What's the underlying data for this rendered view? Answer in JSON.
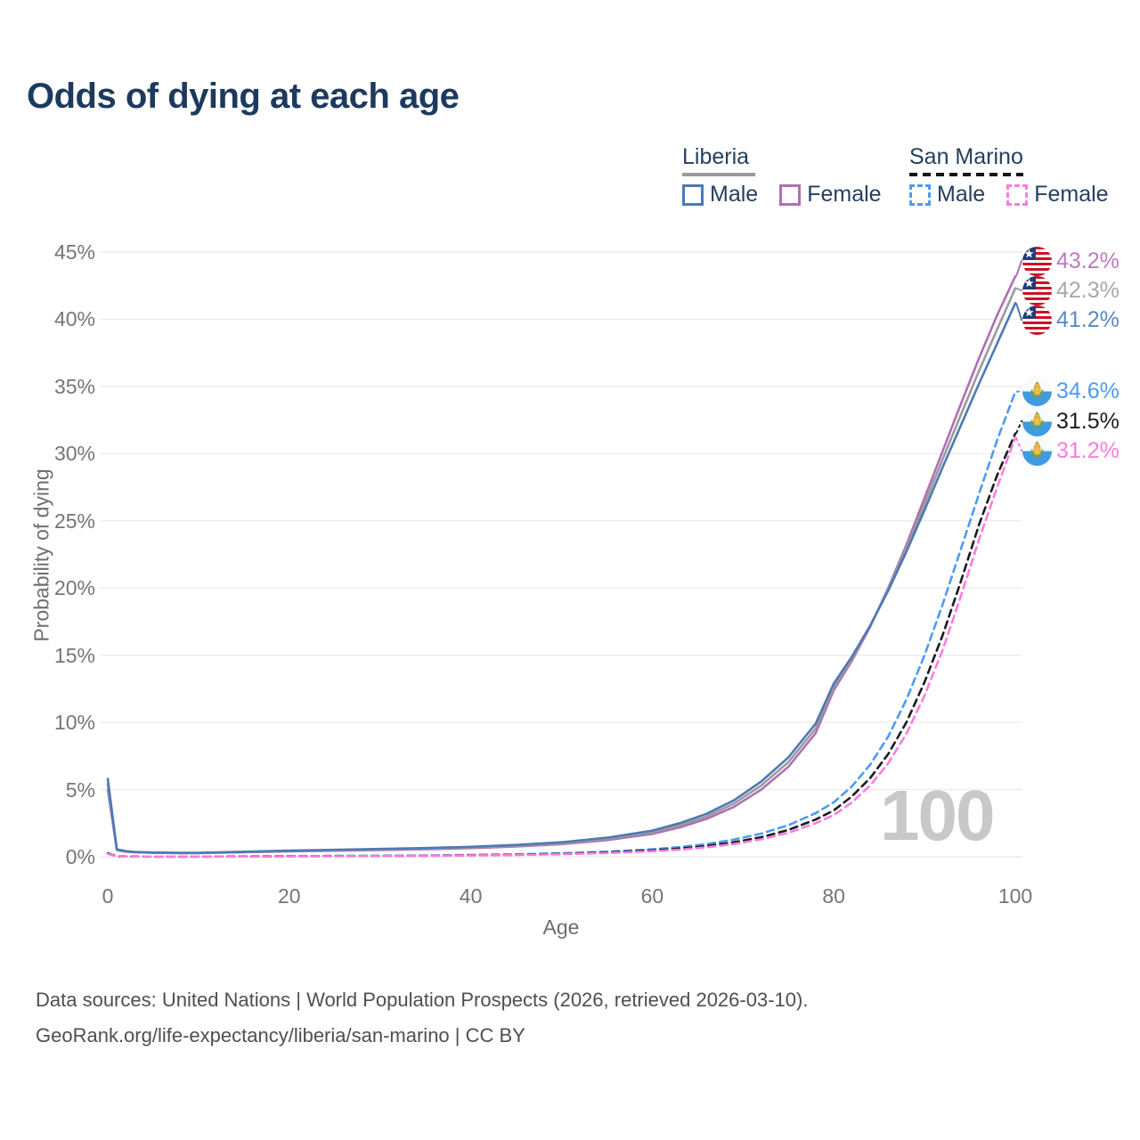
{
  "title": "Odds of dying at each age",
  "watermark_age": "100",
  "legend": {
    "groups": [
      {
        "name": "Liberia",
        "line_style": "solid",
        "underline_color": "#9a9a9a",
        "items": [
          {
            "label": "Male",
            "color": "#4C79B5"
          },
          {
            "label": "Female",
            "color": "#B06FB3"
          }
        ]
      },
      {
        "name": "San Marino",
        "line_style": "dashed",
        "underline_color": "#151515",
        "items": [
          {
            "label": "Male",
            "color": "#4D9BF5"
          },
          {
            "label": "Female",
            "color": "#FF7BDE"
          }
        ]
      }
    ]
  },
  "chart_data": {
    "type": "line",
    "title": "Odds of dying at each age",
    "xlabel": "Age",
    "ylabel": "Probability of dying",
    "xlim": [
      0,
      100
    ],
    "ylim": [
      0,
      45
    ],
    "x_ticks": [
      0,
      20,
      40,
      60,
      80,
      100
    ],
    "y_ticks": [
      0,
      5,
      10,
      15,
      20,
      25,
      30,
      35,
      40,
      45
    ],
    "y_tick_suffix": "%",
    "grid": "horizontal",
    "legend_position": "top-right",
    "x": [
      0,
      1,
      2,
      3,
      5,
      8,
      10,
      15,
      20,
      25,
      30,
      35,
      40,
      45,
      50,
      55,
      60,
      63,
      66,
      69,
      72,
      75,
      78,
      80,
      82,
      84,
      86,
      88,
      90,
      92,
      94,
      96,
      98,
      100
    ],
    "series": [
      {
        "name": "Liberia Female",
        "country": "Liberia",
        "sex": "female",
        "color": "#B06FB3",
        "dash": false,
        "flag": "liberia",
        "end_label": "43.2%",
        "label_color": "#bc7bbe",
        "label_row": 0,
        "values": [
          5.0,
          0.5,
          0.38,
          0.33,
          0.29,
          0.27,
          0.27,
          0.33,
          0.4,
          0.45,
          0.5,
          0.56,
          0.64,
          0.76,
          0.94,
          1.24,
          1.7,
          2.18,
          2.82,
          3.72,
          5.0,
          6.7,
          9.2,
          12.4,
          14.6,
          17.1,
          20.0,
          23.2,
          26.7,
          30.2,
          33.7,
          37.1,
          40.3,
          43.2
        ]
      },
      {
        "name": "Liberia",
        "country": "Liberia",
        "sex": "both",
        "color": "#9b9b9b",
        "dash": false,
        "flag": "liberia",
        "end_label": "42.3%",
        "label_color": "#a8a8a8",
        "label_row": 1,
        "values": [
          5.4,
          0.52,
          0.4,
          0.34,
          0.3,
          0.28,
          0.28,
          0.35,
          0.43,
          0.48,
          0.54,
          0.6,
          0.69,
          0.82,
          1.01,
          1.33,
          1.82,
          2.34,
          3.0,
          3.96,
          5.3,
          7.05,
          9.55,
          12.65,
          14.75,
          17.15,
          19.9,
          22.95,
          26.25,
          29.6,
          32.9,
          36.15,
          39.25,
          42.3
        ]
      },
      {
        "name": "Liberia Male",
        "country": "Liberia",
        "sex": "male",
        "color": "#4C79B5",
        "dash": false,
        "flag": "liberia",
        "end_label": "41.2%",
        "label_color": "#5b88c4",
        "label_row": 2,
        "values": [
          5.8,
          0.55,
          0.42,
          0.36,
          0.32,
          0.3,
          0.3,
          0.38,
          0.46,
          0.52,
          0.58,
          0.65,
          0.74,
          0.88,
          1.08,
          1.42,
          1.95,
          2.5,
          3.2,
          4.2,
          5.6,
          7.4,
          9.9,
          12.9,
          14.9,
          17.2,
          19.8,
          22.7,
          25.8,
          29.0,
          32.1,
          35.2,
          38.2,
          41.2
        ]
      },
      {
        "name": "San Marino Male",
        "country": "San Marino",
        "sex": "male",
        "color": "#4D9BF5",
        "dash": true,
        "flag": "san-marino",
        "end_label": "34.6%",
        "label_color": "#4D9BF5",
        "label_row": 3,
        "values": [
          0.28,
          0.03,
          0.02,
          0.02,
          0.01,
          0.01,
          0.01,
          0.03,
          0.05,
          0.06,
          0.07,
          0.09,
          0.13,
          0.18,
          0.26,
          0.38,
          0.56,
          0.72,
          0.95,
          1.28,
          1.72,
          2.35,
          3.25,
          4.05,
          5.25,
          6.85,
          8.95,
          11.7,
          15.0,
          18.8,
          22.9,
          27.0,
          31.0,
          34.6
        ]
      },
      {
        "name": "San Marino",
        "country": "San Marino",
        "sex": "both",
        "color": "#1c1c1c",
        "dash": true,
        "flag": "san-marino",
        "end_label": "31.5%",
        "label_color": "#1c1c1c",
        "label_row": 4,
        "values": [
          0.25,
          0.03,
          0.02,
          0.02,
          0.01,
          0.01,
          0.01,
          0.02,
          0.04,
          0.05,
          0.06,
          0.08,
          0.11,
          0.15,
          0.22,
          0.32,
          0.47,
          0.61,
          0.8,
          1.08,
          1.46,
          2.0,
          2.77,
          3.45,
          4.5,
          5.85,
          7.65,
          10.0,
          13.0,
          16.5,
          20.5,
          24.7,
          28.4,
          31.5
        ]
      },
      {
        "name": "San Marino Female",
        "country": "San Marino",
        "sex": "female",
        "color": "#FF7BDE",
        "dash": true,
        "flag": "san-marino",
        "end_label": "31.2%",
        "label_color": "#FF7BDE",
        "label_row": 5,
        "values": [
          0.22,
          0.03,
          0.02,
          0.02,
          0.01,
          0.01,
          0.01,
          0.02,
          0.03,
          0.04,
          0.05,
          0.07,
          0.09,
          0.13,
          0.19,
          0.28,
          0.41,
          0.53,
          0.7,
          0.95,
          1.3,
          1.78,
          2.5,
          3.1,
          4.05,
          5.3,
          6.95,
          9.15,
          12.0,
          15.4,
          19.4,
          23.6,
          27.5,
          31.2
        ]
      }
    ]
  },
  "footer": {
    "line1": "Data sources: United Nations | World Population Prospects (2026, retrieved 2026-03-10).",
    "line2": "GeoRank.org/life-expectancy/liberia/san-marino | CC BY"
  }
}
